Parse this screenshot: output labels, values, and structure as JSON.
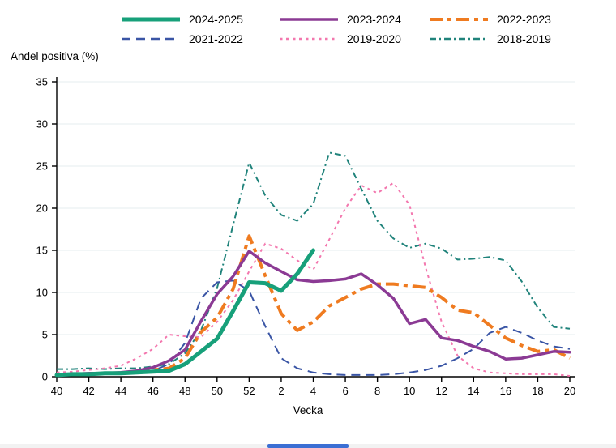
{
  "chart_data": {
    "type": "line",
    "title": "",
    "ylabel": "Andel positiva (%)",
    "xlabel": "Vecka",
    "ylim": [
      0,
      35
    ],
    "yticks": [
      0,
      5,
      10,
      15,
      20,
      25,
      30,
      35
    ],
    "x_categories": [
      "40",
      "41",
      "42",
      "43",
      "44",
      "45",
      "46",
      "47",
      "48",
      "49",
      "50",
      "51",
      "52",
      "1",
      "2",
      "3",
      "4",
      "5",
      "6",
      "7",
      "8",
      "9",
      "10",
      "11",
      "12",
      "13",
      "14",
      "15",
      "16",
      "17",
      "18",
      "19",
      "20"
    ],
    "xtick_labels": [
      "40",
      "42",
      "44",
      "46",
      "48",
      "50",
      "52",
      "2",
      "4",
      "6",
      "8",
      "10",
      "12",
      "14",
      "16",
      "18",
      "20"
    ],
    "xtick_indices": [
      0,
      2,
      4,
      6,
      8,
      10,
      12,
      14,
      16,
      18,
      20,
      22,
      24,
      26,
      28,
      30,
      32
    ],
    "grid": "horizontal-only",
    "legend_position": "top",
    "series": [
      {
        "name": "2024-2025",
        "color": "#17a07a",
        "line_style": "solid-thick",
        "values": [
          0.2,
          0.3,
          0.3,
          0.4,
          0.4,
          0.5,
          0.6,
          0.7,
          1.5,
          3.0,
          4.5,
          7.8,
          11.2,
          11.1,
          10.2,
          12.2,
          15.0
        ]
      },
      {
        "name": "2023-2024",
        "color": "#8b3a94",
        "line_style": "solid",
        "values": [
          0.3,
          0.3,
          0.4,
          0.4,
          0.5,
          0.7,
          1.1,
          1.9,
          3.2,
          6.6,
          9.8,
          11.9,
          14.9,
          13.5,
          12.5,
          11.5,
          11.3,
          11.4,
          11.6,
          12.2,
          10.9,
          9.3,
          6.3,
          6.8,
          4.6,
          4.3,
          3.6,
          3.0,
          2.1,
          2.2,
          2.6,
          3.0,
          2.9
        ]
      },
      {
        "name": "2022-2023",
        "color": "#ef7b20",
        "line_style": "dashdot-thick",
        "values": [
          0.2,
          0.3,
          0.3,
          0.4,
          0.4,
          0.5,
          0.8,
          1.0,
          2.2,
          5.3,
          7.0,
          10.4,
          16.7,
          12.0,
          7.5,
          5.5,
          6.5,
          8.4,
          9.4,
          10.4,
          11.0,
          11.0,
          10.8,
          10.6,
          9.4,
          7.9,
          7.6,
          6.1,
          4.6,
          3.7,
          3.0,
          3.2,
          2.2
        ]
      },
      {
        "name": "2021-2022",
        "color": "#3a55a5",
        "line_style": "dash",
        "values": [
          0.2,
          0.2,
          0.3,
          0.3,
          0.3,
          0.4,
          0.7,
          1.5,
          4.0,
          9.3,
          11.2,
          11.4,
          10.2,
          6.0,
          2.2,
          1.0,
          0.5,
          0.3,
          0.2,
          0.2,
          0.2,
          0.3,
          0.5,
          0.8,
          1.3,
          2.2,
          3.3,
          5.2,
          5.9,
          5.2,
          4.3,
          3.6,
          3.3
        ]
      },
      {
        "name": "2019-2020",
        "color": "#f377ae",
        "line_style": "dot",
        "values": [
          0.5,
          0.6,
          0.8,
          1.0,
          1.3,
          2.2,
          3.3,
          5.0,
          4.8,
          4.7,
          6.5,
          9.1,
          12.5,
          15.8,
          15.2,
          13.8,
          12.7,
          16.3,
          20.0,
          22.7,
          21.8,
          23.0,
          20.4,
          13.0,
          6.5,
          2.5,
          1.0,
          0.5,
          0.4,
          0.3,
          0.3,
          0.3,
          0.1
        ]
      },
      {
        "name": "2018-2019",
        "color": "#20837b",
        "line_style": "dashdot",
        "values": [
          0.9,
          0.9,
          1.0,
          0.9,
          1.0,
          1.0,
          1.2,
          1.5,
          2.8,
          5.5,
          10.5,
          18.0,
          25.4,
          21.5,
          19.2,
          18.5,
          20.5,
          26.6,
          26.2,
          22.3,
          18.5,
          16.4,
          15.3,
          15.8,
          15.2,
          13.9,
          14.0,
          14.2,
          13.8,
          11.3,
          8.2,
          5.9,
          5.7
        ]
      }
    ],
    "axis_color": "#000000",
    "grid_color": "#e4edef"
  },
  "scrollbar": {
    "thumb_color": "#3b6fd4"
  }
}
